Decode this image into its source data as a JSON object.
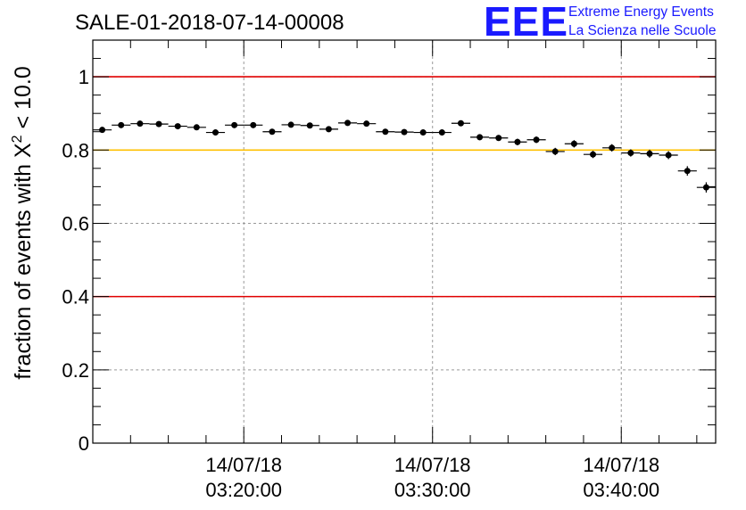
{
  "title": "SALE-01-2018-07-14-00008",
  "logo": {
    "mark": "EEE",
    "line1": "Extreme Energy Events",
    "line2": "La Scienza nelle Scuole"
  },
  "colors": {
    "threshold_red": "#e00000",
    "threshold_yellow": "#ffc000",
    "logo_blue": "#1a1aff",
    "grid": "#999999",
    "markers": "#000000"
  },
  "chart_data": {
    "type": "scatter",
    "title": "SALE-01-2018-07-14-00008",
    "xlabel": "",
    "ylabel_prefix": "fraction of events with ",
    "ylabel_symbol": "X",
    "ylabel_exponent": "2",
    "ylabel_suffix": " < 10.0",
    "x_unit": "minutes from 03:12",
    "xlim": [
      0,
      33
    ],
    "ylim": [
      0,
      1.1
    ],
    "grid": true,
    "y_ticks": [
      {
        "value": 0,
        "label": "0"
      },
      {
        "value": 0.2,
        "label": "0.2"
      },
      {
        "value": 0.4,
        "label": "0.4"
      },
      {
        "value": 0.6,
        "label": "0.6"
      },
      {
        "value": 0.8,
        "label": "0.8"
      },
      {
        "value": 1.0,
        "label": "1"
      }
    ],
    "x_ticks": [
      {
        "value": 8,
        "date": "14/07/18",
        "time": "03:20:00"
      },
      {
        "value": 18,
        "date": "14/07/18",
        "time": "03:30:00"
      },
      {
        "value": 28,
        "date": "14/07/18",
        "time": "03:40:00"
      }
    ],
    "thresholds": [
      {
        "value": 1.0,
        "color": "#e00000"
      },
      {
        "value": 0.8,
        "color": "#ffc000"
      },
      {
        "value": 0.4,
        "color": "#e00000"
      }
    ],
    "bin_width": 1,
    "x": [
      0.5,
      1.5,
      2.5,
      3.5,
      4.5,
      5.5,
      6.5,
      7.5,
      8.5,
      9.5,
      10.5,
      11.5,
      12.5,
      13.5,
      14.5,
      15.5,
      16.5,
      17.5,
      18.5,
      19.5,
      20.5,
      21.5,
      22.5,
      23.5,
      24.5,
      25.5,
      26.5,
      27.5,
      28.5,
      29.5,
      30.5,
      31.5,
      32.5
    ],
    "values": [
      0.855,
      0.868,
      0.872,
      0.871,
      0.865,
      0.862,
      0.848,
      0.868,
      0.868,
      0.85,
      0.869,
      0.867,
      0.857,
      0.874,
      0.872,
      0.85,
      0.849,
      0.848,
      0.848,
      0.873,
      0.835,
      0.833,
      0.822,
      0.828,
      0.796,
      0.817,
      0.788,
      0.806,
      0.792,
      0.79,
      0.786,
      0.743,
      0.698
    ],
    "errors": [
      0.007,
      0.007,
      0.007,
      0.007,
      0.007,
      0.007,
      0.008,
      0.007,
      0.007,
      0.008,
      0.007,
      0.007,
      0.007,
      0.007,
      0.007,
      0.008,
      0.008,
      0.008,
      0.008,
      0.007,
      0.008,
      0.008,
      0.009,
      0.009,
      0.01,
      0.01,
      0.01,
      0.01,
      0.01,
      0.011,
      0.011,
      0.013,
      0.014
    ]
  }
}
